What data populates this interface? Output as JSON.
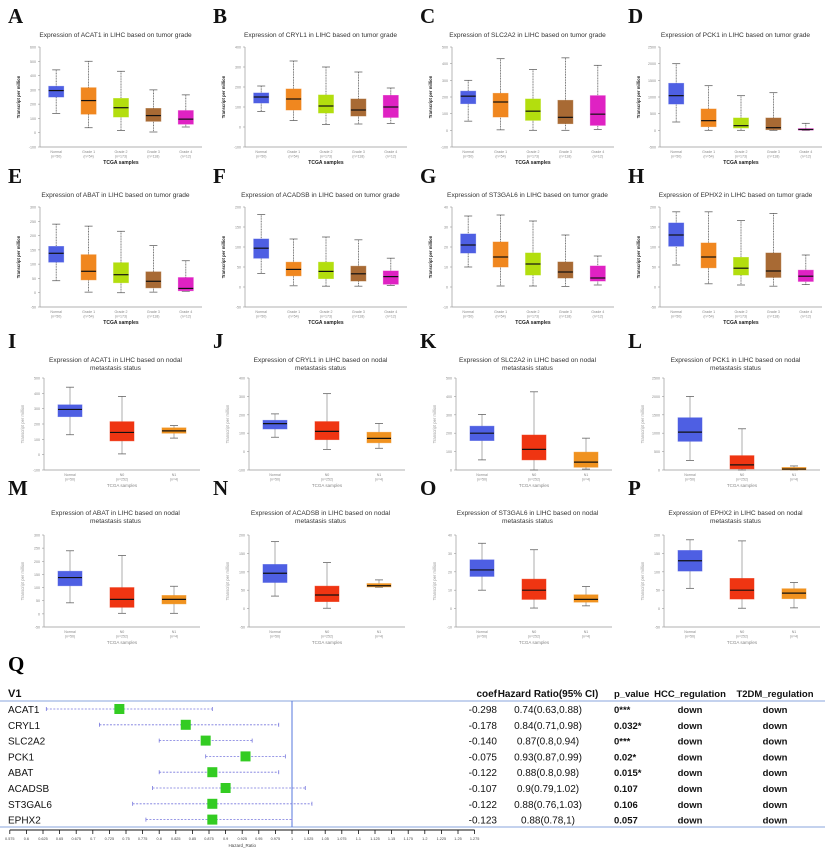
{
  "colors": {
    "Normal": "#4e5fe3",
    "Grade 1": "#f0871f",
    "Grade 2": "#b3de0e",
    "Grade 3": "#a86a34",
    "Grade 4": "#df22c3",
    "N0": "#ef3512",
    "N1": "#f0921f"
  },
  "xlabel": "TCGA samples",
  "ylabel": "Transcript per million",
  "chart_data": [
    {
      "type": "box",
      "label": "A",
      "title": "Expression of ACAT1 in LIHC based on tumor grade",
      "ylim": [
        -100,
        600
      ],
      "step": 100,
      "groups": [
        {
          "name": "Normal",
          "n": "(n=50)",
          "q": [
            135,
            250,
            295,
            325,
            440
          ]
        },
        {
          "name": "Grade 1",
          "n": "(n=54)",
          "q": [
            35,
            130,
            225,
            315,
            500
          ]
        },
        {
          "name": "Grade 2",
          "n": "(n=173)",
          "q": [
            15,
            110,
            175,
            240,
            430
          ]
        },
        {
          "name": "Grade 3",
          "n": "(n=118)",
          "q": [
            5,
            80,
            120,
            170,
            300
          ]
        },
        {
          "name": "Grade 4",
          "n": "(n=12)",
          "q": [
            40,
            60,
            95,
            155,
            265
          ]
        }
      ]
    },
    {
      "type": "box",
      "label": "B",
      "title": "Expression of CRYL1 in LIHC based on tumor grade",
      "ylim": [
        -100,
        400
      ],
      "step": 100,
      "groups": [
        {
          "name": "Normal",
          "n": "(n=50)",
          "q": [
            78,
            120,
            150,
            170,
            205
          ]
        },
        {
          "name": "Grade 1",
          "n": "(n=54)",
          "q": [
            32,
            85,
            140,
            190,
            330
          ]
        },
        {
          "name": "Grade 2",
          "n": "(n=173)",
          "q": [
            12,
            70,
            105,
            160,
            300
          ]
        },
        {
          "name": "Grade 3",
          "n": "(n=118)",
          "q": [
            15,
            55,
            85,
            140,
            275
          ]
        },
        {
          "name": "Grade 4",
          "n": "(n=12)",
          "q": [
            18,
            48,
            100,
            158,
            195
          ]
        }
      ]
    },
    {
      "type": "box",
      "label": "C",
      "title": "Expression of SLC2A2 in LIHC based on tumor grade",
      "ylim": [
        -100,
        500
      ],
      "step": 100,
      "groups": [
        {
          "name": "Normal",
          "n": "(n=50)",
          "q": [
            55,
            160,
            205,
            235,
            300
          ]
        },
        {
          "name": "Grade 1",
          "n": "(n=54)",
          "q": [
            3,
            80,
            170,
            222,
            430
          ]
        },
        {
          "name": "Grade 2",
          "n": "(n=173)",
          "q": [
            0,
            60,
            115,
            188,
            365
          ]
        },
        {
          "name": "Grade 3",
          "n": "(n=118)",
          "q": [
            0,
            40,
            78,
            180,
            435
          ]
        },
        {
          "name": "Grade 4",
          "n": "(n=12)",
          "q": [
            5,
            30,
            97,
            208,
            390
          ]
        }
      ]
    },
    {
      "type": "box",
      "label": "D",
      "title": "Expression of PCK1 in LIHC based on tumor grade",
      "ylim": [
        -500,
        2500
      ],
      "step": 500,
      "groups": [
        {
          "name": "Normal",
          "n": "(n=50)",
          "q": [
            250,
            790,
            1040,
            1410,
            2000
          ]
        },
        {
          "name": "Grade 1",
          "n": "(n=54)",
          "q": [
            0,
            110,
            290,
            640,
            1340
          ]
        },
        {
          "name": "Grade 2",
          "n": "(n=173)",
          "q": [
            0,
            70,
            140,
            370,
            1040
          ]
        },
        {
          "name": "Grade 3",
          "n": "(n=118)",
          "q": [
            0,
            20,
            80,
            370,
            1130
          ]
        },
        {
          "name": "Grade 4",
          "n": "(n=12)",
          "q": [
            0,
            10,
            25,
            50,
            210
          ]
        }
      ]
    },
    {
      "type": "box",
      "label": "E",
      "title": "Expression of ABAT in LIHC based on tumor grade",
      "ylim": [
        -50,
        300
      ],
      "step": 50,
      "groups": [
        {
          "name": "Normal",
          "n": "(n=50)",
          "q": [
            42,
            107,
            138,
            162,
            240
          ]
        },
        {
          "name": "Grade 1",
          "n": "(n=54)",
          "q": [
            2,
            45,
            75,
            133,
            233
          ]
        },
        {
          "name": "Grade 2",
          "n": "(n=173)",
          "q": [
            0,
            35,
            63,
            105,
            215
          ]
        },
        {
          "name": "Grade 3",
          "n": "(n=118)",
          "q": [
            2,
            17,
            40,
            73,
            165
          ]
        },
        {
          "name": "Grade 4",
          "n": "(n=12)",
          "q": [
            5,
            7,
            15,
            53,
            112
          ]
        }
      ]
    },
    {
      "type": "box",
      "label": "F",
      "title": "Expression of ACADSB in LIHC based on tumor grade",
      "ylim": [
        -50,
        200
      ],
      "step": 50,
      "groups": [
        {
          "name": "Normal",
          "n": "(n=50)",
          "q": [
            34,
            72,
            97,
            120,
            181
          ]
        },
        {
          "name": "Grade 1",
          "n": "(n=54)",
          "q": [
            3,
            28,
            44,
            62,
            120
          ]
        },
        {
          "name": "Grade 2",
          "n": "(n=173)",
          "q": [
            2,
            21,
            39,
            62,
            125
          ]
        },
        {
          "name": "Grade 3",
          "n": "(n=118)",
          "q": [
            2,
            15,
            33,
            52,
            118
          ]
        },
        {
          "name": "Grade 4",
          "n": "(n=12)",
          "q": [
            4,
            7,
            26,
            40,
            72
          ]
        }
      ]
    },
    {
      "type": "box",
      "label": "G",
      "title": "Expression of ST3GAL6 in LIHC based on tumor grade",
      "ylim": [
        -10,
        40
      ],
      "step": 10,
      "groups": [
        {
          "name": "Normal",
          "n": "(n=50)",
          "q": [
            10,
            17,
            21,
            26.5,
            35.5
          ]
        },
        {
          "name": "Grade 1",
          "n": "(n=54)",
          "q": [
            0.5,
            10,
            15,
            22.5,
            36
          ]
        },
        {
          "name": "Grade 2",
          "n": "(n=173)",
          "q": [
            0.5,
            6,
            11.5,
            17,
            33
          ]
        },
        {
          "name": "Grade 3",
          "n": "(n=118)",
          "q": [
            0.3,
            4.5,
            7.5,
            12.5,
            26
          ]
        },
        {
          "name": "Grade 4",
          "n": "(n=12)",
          "q": [
            1,
            3,
            4.5,
            10.5,
            15.5
          ]
        }
      ]
    },
    {
      "type": "box",
      "label": "H",
      "title": "Expression of EPHX2 in LIHC based on tumor grade",
      "ylim": [
        -50,
        200
      ],
      "step": 50,
      "groups": [
        {
          "name": "Normal",
          "n": "(n=50)",
          "q": [
            55,
            102,
            130,
            160,
            188
          ]
        },
        {
          "name": "Grade 1",
          "n": "(n=54)",
          "q": [
            8,
            48,
            75,
            110,
            188
          ]
        },
        {
          "name": "Grade 2",
          "n": "(n=173)",
          "q": [
            5,
            30,
            47,
            74,
            166
          ]
        },
        {
          "name": "Grade 3",
          "n": "(n=118)",
          "q": [
            2,
            24,
            40,
            85,
            184
          ]
        },
        {
          "name": "Grade 4",
          "n": "(n=12)",
          "q": [
            6,
            14,
            27,
            42,
            80
          ]
        }
      ]
    },
    {
      "type": "box",
      "label": "I",
      "title": "Expression of ACAT1 in LIHC based on nodal metastasis status",
      "ylim": [
        -100,
        500
      ],
      "step": 100,
      "groups": [
        {
          "name": "Normal",
          "n": "(n=50)",
          "q": [
            130,
            248,
            295,
            325,
            440
          ]
        },
        {
          "name": "N0",
          "n": "(n=252)",
          "q": [
            5,
            90,
            145,
            215,
            380
          ]
        },
        {
          "name": "N1",
          "n": "(n=4)",
          "q": [
            108,
            140,
            155,
            175,
            190
          ]
        }
      ]
    },
    {
      "type": "box",
      "label": "J",
      "title": "Expression of CRYL1 in LIHC based on nodal metastasis status",
      "ylim": [
        -100,
        400
      ],
      "step": 100,
      "groups": [
        {
          "name": "Normal",
          "n": "(n=50)",
          "q": [
            78,
            123,
            152,
            170,
            205
          ]
        },
        {
          "name": "N0",
          "n": "(n=252)",
          "q": [
            12,
            65,
            110,
            163,
            315
          ]
        },
        {
          "name": "N1",
          "n": "(n=4)",
          "q": [
            18,
            48,
            72,
            105,
            153
          ]
        }
      ]
    },
    {
      "type": "box",
      "label": "K",
      "title": "Expression of SLC2A2 in LIHC based on nodal metastasis status",
      "ylim": [
        0,
        500
      ],
      "step": 100,
      "groups": [
        {
          "name": "Normal",
          "n": "(n=50)",
          "q": [
            55,
            160,
            200,
            238,
            302
          ]
        },
        {
          "name": "N0",
          "n": "(n=252)",
          "q": [
            0,
            55,
            112,
            190,
            425
          ]
        },
        {
          "name": "N1",
          "n": "(n=4)",
          "q": [
            5,
            15,
            43,
            97,
            173
          ]
        }
      ]
    },
    {
      "type": "box",
      "label": "L",
      "title": "Expression of PCK1 in LIHC based on nodal metastasis status",
      "ylim": [
        0,
        2500
      ],
      "step": 500,
      "groups": [
        {
          "name": "Normal",
          "n": "(n=50)",
          "q": [
            260,
            780,
            1030,
            1420,
            2000
          ]
        },
        {
          "name": "N0",
          "n": "(n=252)",
          "q": [
            0,
            30,
            140,
            390,
            1120
          ]
        },
        {
          "name": "N1",
          "n": "(n=4)",
          "q": [
            0,
            5,
            25,
            70,
            110
          ]
        }
      ]
    },
    {
      "type": "box",
      "label": "M",
      "title": "Expression of ABAT in LIHC based on nodal metastasis status",
      "ylim": [
        -50,
        300
      ],
      "step": 50,
      "groups": [
        {
          "name": "Normal",
          "n": "(n=50)",
          "q": [
            42,
            107,
            138,
            162,
            240
          ]
        },
        {
          "name": "N0",
          "n": "(n=252)",
          "q": [
            2,
            25,
            55,
            100,
            222
          ]
        },
        {
          "name": "N1",
          "n": "(n=4)",
          "q": [
            2,
            38,
            55,
            70,
            105
          ]
        }
      ]
    },
    {
      "type": "box",
      "label": "N",
      "title": "Expression of ACADSB in LIHC based on nodal metastasis status",
      "ylim": [
        -50,
        200
      ],
      "step": 50,
      "groups": [
        {
          "name": "Normal",
          "n": "(n=50)",
          "q": [
            34,
            71,
            96,
            120,
            182
          ]
        },
        {
          "name": "N0",
          "n": "(n=252)",
          "q": [
            1,
            19,
            37,
            61,
            125
          ]
        },
        {
          "name": "N1",
          "n": "(n=4)",
          "q": [
            58,
            59,
            62,
            68,
            78
          ]
        }
      ]
    },
    {
      "type": "box",
      "label": "O",
      "title": "Expression of ST3GAL6 in LIHC based on nodal metastasis status",
      "ylim": [
        -10,
        40
      ],
      "step": 10,
      "groups": [
        {
          "name": "Normal",
          "n": "(n=50)",
          "q": [
            10,
            17.5,
            21,
            26.5,
            35.5
          ]
        },
        {
          "name": "N0",
          "n": "(n=252)",
          "q": [
            0.3,
            5,
            10,
            16,
            32
          ]
        },
        {
          "name": "N1",
          "n": "(n=4)",
          "q": [
            1.5,
            3.5,
            5,
            7.5,
            12
          ]
        }
      ]
    },
    {
      "type": "box",
      "label": "P",
      "title": "Expression of EPHX2 in LIHC based on nodal metastasis status",
      "ylim": [
        -50,
        200
      ],
      "step": 50,
      "groups": [
        {
          "name": "Normal",
          "n": "(n=50)",
          "q": [
            55,
            102,
            130,
            158,
            187
          ]
        },
        {
          "name": "N0",
          "n": "(n=252)",
          "q": [
            1,
            26,
            50,
            82,
            184
          ]
        },
        {
          "name": "N1",
          "n": "(n=4)",
          "q": [
            2,
            27,
            42,
            54,
            71
          ]
        }
      ]
    },
    {
      "type": "forest",
      "label": "Q",
      "var_header": "V1",
      "xlabel": "Hazard_Ratio",
      "xlim": [
        0.575,
        1.275
      ],
      "step": 0.025,
      "columns": [
        "coef",
        "Hazard Ratio(95% CI)",
        "p_value",
        "HCC_regulation",
        "T2DM_regulation"
      ],
      "rows": [
        {
          "gene": "ACAT1",
          "hr": 0.74,
          "lo": 0.63,
          "hi": 0.88,
          "coef": "-0.298",
          "ci": "0.74(0.63,0.88)",
          "p": "0***",
          "hcc": "down",
          "t2dm": "down"
        },
        {
          "gene": "CRYL1",
          "hr": 0.84,
          "lo": 0.71,
          "hi": 0.98,
          "coef": "-0.178",
          "ci": "0.84(0.71,0.98)",
          "p": "0.032*",
          "hcc": "down",
          "t2dm": "down"
        },
        {
          "gene": "SLC2A2",
          "hr": 0.87,
          "lo": 0.8,
          "hi": 0.94,
          "coef": "-0.140",
          "ci": "0.87(0.8,0.94)",
          "p": "0***",
          "hcc": "down",
          "t2dm": "down"
        },
        {
          "gene": "PCK1",
          "hr": 0.93,
          "lo": 0.87,
          "hi": 0.99,
          "coef": "-0.075",
          "ci": "0.93(0.87,0.99)",
          "p": "0.02*",
          "hcc": "down",
          "t2dm": "down"
        },
        {
          "gene": "ABAT",
          "hr": 0.88,
          "lo": 0.8,
          "hi": 0.98,
          "coef": "-0.122",
          "ci": "0.88(0.8,0.98)",
          "p": "0.015*",
          "hcc": "down",
          "t2dm": "down"
        },
        {
          "gene": "ACADSB",
          "hr": 0.9,
          "lo": 0.79,
          "hi": 1.02,
          "coef": "-0.107",
          "ci": "0.9(0.79,1.02)",
          "p": "0.107",
          "hcc": "down",
          "t2dm": "down"
        },
        {
          "gene": "ST3GAL6",
          "hr": 0.88,
          "lo": 0.76,
          "hi": 1.03,
          "coef": "-0.122",
          "ci": "0.88(0.76,1.03)",
          "p": "0.106",
          "hcc": "down",
          "t2dm": "down"
        },
        {
          "gene": "EPHX2",
          "hr": 0.88,
          "lo": 0.78,
          "hi": 1,
          "coef": "-0.123",
          "ci": "0.88(0.78,1)",
          "p": "0.057",
          "hcc": "down",
          "t2dm": "down"
        }
      ]
    }
  ]
}
